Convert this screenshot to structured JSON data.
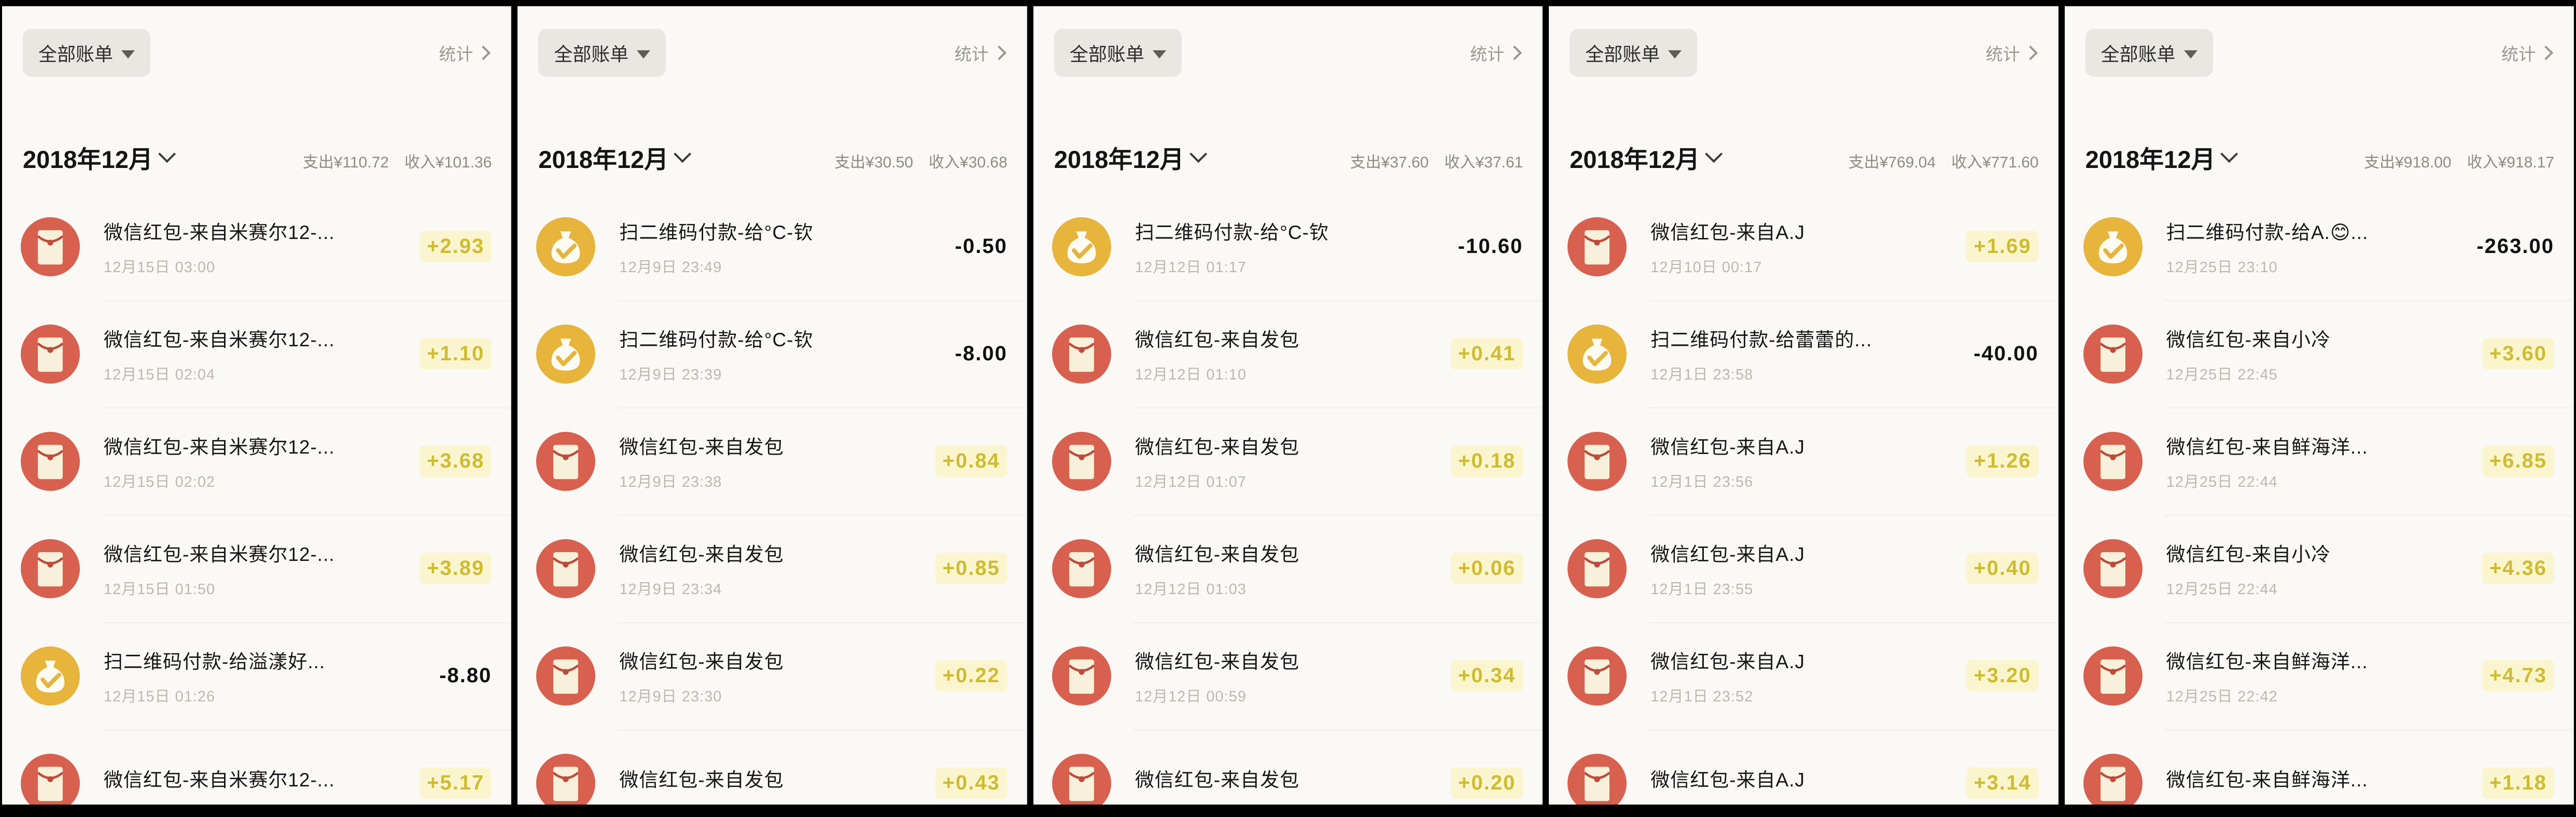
{
  "panels": [
    {
      "filter_label": "全部账单",
      "stats_label": "统计",
      "month": "2018年12月",
      "expense_total": "支出¥110.72",
      "income_total": "收入¥101.36",
      "rows": [
        {
          "title": "微信红包-来自米赛尔12-...",
          "date": "12月15日 03:00",
          "amount": "+2.93",
          "direction": "income",
          "icon": "red-envelope-icon"
        },
        {
          "title": "微信红包-来自米赛尔12-...",
          "date": "12月15日 02:04",
          "amount": "+1.10",
          "direction": "income",
          "icon": "red-envelope-icon"
        },
        {
          "title": "微信红包-来自米赛尔12-...",
          "date": "12月15日 02:02",
          "amount": "+3.68",
          "direction": "income",
          "icon": "red-envelope-icon"
        },
        {
          "title": "微信红包-来自米赛尔12-...",
          "date": "12月15日 01:50",
          "amount": "+3.89",
          "direction": "income",
          "icon": "red-envelope-icon"
        },
        {
          "title": "扫二维码付款-给溢漾好...",
          "date": "12月15日 01:26",
          "amount": "-8.80",
          "direction": "expense",
          "icon": "money-bag-icon"
        },
        {
          "title": "微信红包-来自米赛尔12-...",
          "date": "",
          "amount": "+5.17",
          "direction": "income",
          "icon": "red-envelope-icon"
        }
      ]
    },
    {
      "filter_label": "全部账单",
      "stats_label": "统计",
      "month": "2018年12月",
      "expense_total": "支出¥30.50",
      "income_total": "收入¥30.68",
      "rows": [
        {
          "title": "扫二维码付款-给°C-钦",
          "date": "12月9日 23:49",
          "amount": "-0.50",
          "direction": "expense",
          "icon": "money-bag-icon"
        },
        {
          "title": "扫二维码付款-给°C-钦",
          "date": "12月9日 23:39",
          "amount": "-8.00",
          "direction": "expense",
          "icon": "money-bag-icon"
        },
        {
          "title": "微信红包-来自发包",
          "date": "12月9日 23:38",
          "amount": "+0.84",
          "direction": "income",
          "icon": "red-envelope-icon"
        },
        {
          "title": "微信红包-来自发包",
          "date": "12月9日 23:34",
          "amount": "+0.85",
          "direction": "income",
          "icon": "red-envelope-icon"
        },
        {
          "title": "微信红包-来自发包",
          "date": "12月9日 23:30",
          "amount": "+0.22",
          "direction": "income",
          "icon": "red-envelope-icon"
        },
        {
          "title": "微信红包-来自发包",
          "date": "",
          "amount": "+0.43",
          "direction": "income",
          "icon": "red-envelope-icon"
        }
      ]
    },
    {
      "filter_label": "全部账单",
      "stats_label": "统计",
      "month": "2018年12月",
      "expense_total": "支出¥37.60",
      "income_total": "收入¥37.61",
      "rows": [
        {
          "title": "扫二维码付款-给°C-钦",
          "date": "12月12日 01:17",
          "amount": "-10.60",
          "direction": "expense",
          "icon": "money-bag-icon"
        },
        {
          "title": "微信红包-来自发包",
          "date": "12月12日 01:10",
          "amount": "+0.41",
          "direction": "income",
          "icon": "red-envelope-icon"
        },
        {
          "title": "微信红包-来自发包",
          "date": "12月12日 01:07",
          "amount": "+0.18",
          "direction": "income",
          "icon": "red-envelope-icon"
        },
        {
          "title": "微信红包-来自发包",
          "date": "12月12日 01:03",
          "amount": "+0.06",
          "direction": "income",
          "icon": "red-envelope-icon"
        },
        {
          "title": "微信红包-来自发包",
          "date": "12月12日 00:59",
          "amount": "+0.34",
          "direction": "income",
          "icon": "red-envelope-icon"
        },
        {
          "title": "微信红包-来自发包",
          "date": "",
          "amount": "+0.20",
          "direction": "income",
          "icon": "red-envelope-icon"
        }
      ]
    },
    {
      "filter_label": "全部账单",
      "stats_label": "统计",
      "month": "2018年12月",
      "expense_total": "支出¥769.04",
      "income_total": "收入¥771.60",
      "rows": [
        {
          "title": "微信红包-来自A.J",
          "date": "12月10日 00:17",
          "amount": "+1.69",
          "direction": "income",
          "icon": "red-envelope-icon"
        },
        {
          "title": "扫二维码付款-给蕾蕾的...",
          "date": "12月1日 23:58",
          "amount": "-40.00",
          "direction": "expense",
          "icon": "money-bag-icon"
        },
        {
          "title": "微信红包-来自A.J",
          "date": "12月1日 23:56",
          "amount": "+1.26",
          "direction": "income",
          "icon": "red-envelope-icon"
        },
        {
          "title": "微信红包-来自A.J",
          "date": "12月1日 23:55",
          "amount": "+0.40",
          "direction": "income",
          "icon": "red-envelope-icon"
        },
        {
          "title": "微信红包-来自A.J",
          "date": "12月1日 23:52",
          "amount": "+3.20",
          "direction": "income",
          "icon": "red-envelope-icon"
        },
        {
          "title": "微信红包-来自A.J",
          "date": "",
          "amount": "+3.14",
          "direction": "income",
          "icon": "red-envelope-icon"
        }
      ]
    },
    {
      "filter_label": "全部账单",
      "stats_label": "统计",
      "month": "2018年12月",
      "expense_total": "支出¥918.00",
      "income_total": "收入¥918.17",
      "rows": [
        {
          "title": "扫二维码付款-给A.😊...",
          "date": "12月25日 23:10",
          "amount": "-263.00",
          "direction": "expense",
          "icon": "money-bag-icon"
        },
        {
          "title": "微信红包-来自小冷",
          "date": "12月25日 22:45",
          "amount": "+3.60",
          "direction": "income",
          "icon": "red-envelope-icon"
        },
        {
          "title": "微信红包-来自鲜海洋...",
          "date": "12月25日 22:44",
          "amount": "+6.85",
          "direction": "income",
          "icon": "red-envelope-icon"
        },
        {
          "title": "微信红包-来自小冷",
          "date": "12月25日 22:44",
          "amount": "+4.36",
          "direction": "income",
          "icon": "red-envelope-icon"
        },
        {
          "title": "微信红包-来自鲜海洋...",
          "date": "12月25日 22:42",
          "amount": "+4.73",
          "direction": "income",
          "icon": "red-envelope-icon"
        },
        {
          "title": "微信红包-来自鲜海洋...",
          "date": "",
          "amount": "+1.18",
          "direction": "income",
          "icon": "red-envelope-icon"
        }
      ]
    }
  ]
}
